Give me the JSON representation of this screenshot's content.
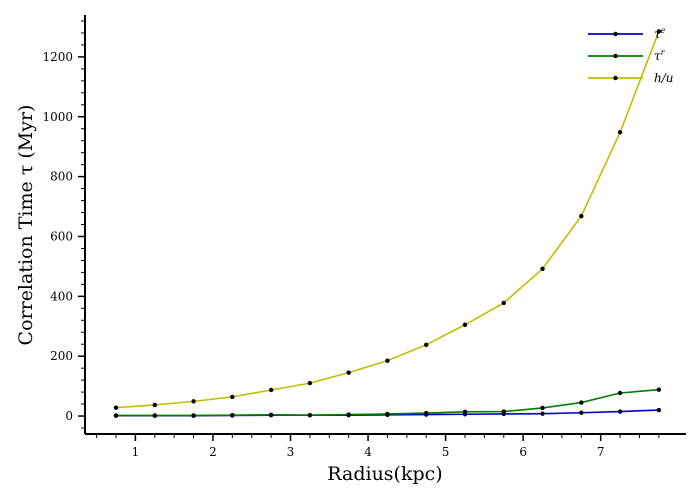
{
  "chart_data": {
    "type": "line",
    "xlabel": "Radius(kpc)",
    "ylabel": "Correlation Time τ (Myr)",
    "xlim": [
      0.35,
      8.1
    ],
    "ylim": [
      -60,
      1340
    ],
    "xticks": [
      1,
      2,
      3,
      4,
      5,
      6,
      7
    ],
    "yticks": [
      0,
      200,
      400,
      600,
      800,
      1000,
      1200
    ],
    "grid": false,
    "legend_position": "top-right",
    "x": [
      0.75,
      1.25,
      1.75,
      2.25,
      2.75,
      3.25,
      3.75,
      4.25,
      4.75,
      5.25,
      5.75,
      6.25,
      6.75,
      7.25,
      7.75
    ],
    "series": [
      {
        "name": "τᵉ",
        "name_base": "τ",
        "name_sup": "e",
        "color": "#0000cc",
        "values": [
          1,
          1,
          1,
          2,
          3,
          3,
          3,
          4,
          5,
          6,
          7,
          8,
          11,
          15,
          20
        ]
      },
      {
        "name": "τʳ",
        "name_base": "τ",
        "name_sup": "r",
        "color": "#007f00",
        "values": [
          2,
          2,
          2,
          3,
          4,
          3,
          5,
          7,
          10,
          14,
          15,
          27,
          45,
          77,
          88
        ]
      },
      {
        "name": "h/u",
        "name_base": "h/u",
        "name_sup": "",
        "color": "#bfbf00",
        "values": [
          28,
          37,
          49,
          64,
          87,
          110,
          145,
          185,
          238,
          305,
          378,
          492,
          668,
          948,
          1285
        ]
      }
    ]
  }
}
